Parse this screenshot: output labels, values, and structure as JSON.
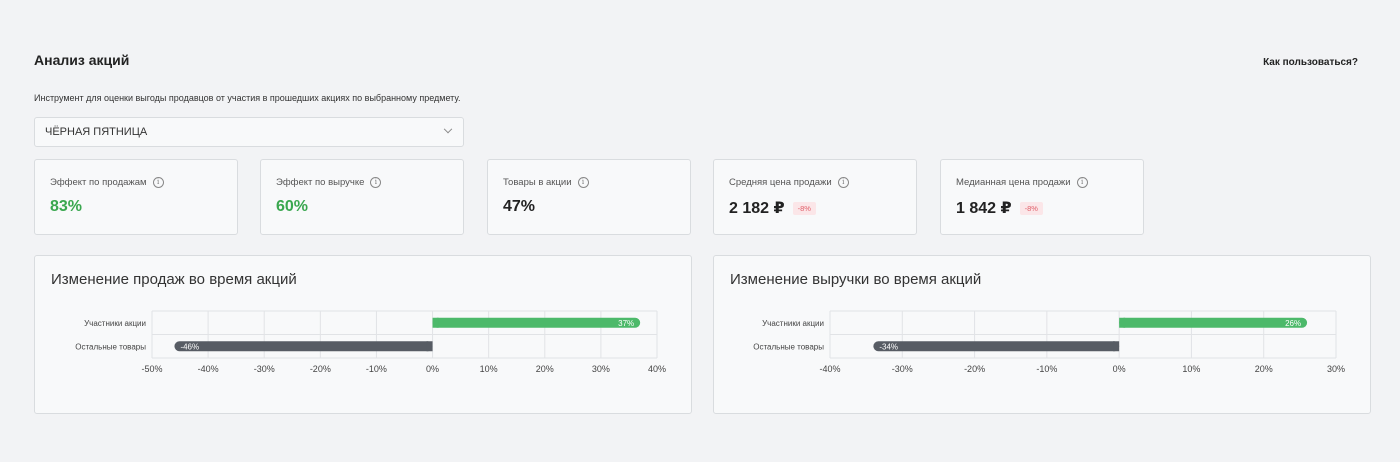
{
  "header": {
    "title": "Анализ акций",
    "help_link": "Как пользоваться?",
    "subtitle": "Инструмент для оценки выгоды продавцов от участия в прошедших акциях по выбранному предмету."
  },
  "promo_select": {
    "value": "ЧЁРНАЯ ПЯТНИЦА",
    "icon": "chevron-down-icon"
  },
  "metrics": [
    {
      "label": "Эффект по продажам",
      "value": "83%",
      "color": "#3aa74f",
      "badge": ""
    },
    {
      "label": "Эффект по выручке",
      "value": "60%",
      "color": "#3aa74f",
      "badge": ""
    },
    {
      "label": "Товары в акции",
      "value": "47%",
      "color": "#222222",
      "badge": ""
    },
    {
      "label": "Средняя цена продажи",
      "value": "2 182 ₽",
      "color": "#222222",
      "badge": "-8%"
    },
    {
      "label": "Медианная цена продажи",
      "value": "1 842 ₽",
      "color": "#222222",
      "badge": "-8%"
    }
  ],
  "colors": {
    "positive_bar": "#4cb96a",
    "negative_bar": "#575c64",
    "badge_text": "#e0606a",
    "badge_bg": "#fbe6e8"
  },
  "chart_data": [
    {
      "type": "bar",
      "orientation": "horizontal",
      "title": "Изменение продаж во время акций",
      "categories": [
        "Участники акции",
        "Остальные товары"
      ],
      "values": [
        37,
        -46
      ],
      "value_labels": [
        "37%",
        "-46%"
      ],
      "xlim": [
        -50,
        40
      ],
      "xticks": [
        -50,
        -40,
        -30,
        -20,
        -10,
        0,
        10,
        20,
        30,
        40
      ],
      "xtick_labels": [
        "-50%",
        "-40%",
        "-30%",
        "-20%",
        "-10%",
        "0%",
        "10%",
        "20%",
        "30%",
        "40%"
      ],
      "grid": true
    },
    {
      "type": "bar",
      "orientation": "horizontal",
      "title": "Изменение выручки во время акций",
      "categories": [
        "Участники акции",
        "Остальные товары"
      ],
      "values": [
        26,
        -34
      ],
      "value_labels": [
        "26%",
        "-34%"
      ],
      "xlim": [
        -40,
        30
      ],
      "xticks": [
        -40,
        -30,
        -20,
        -10,
        0,
        10,
        20,
        30
      ],
      "xtick_labels": [
        "-40%",
        "-30%",
        "-20%",
        "-10%",
        "0%",
        "10%",
        "20%",
        "30%"
      ],
      "grid": true
    }
  ]
}
